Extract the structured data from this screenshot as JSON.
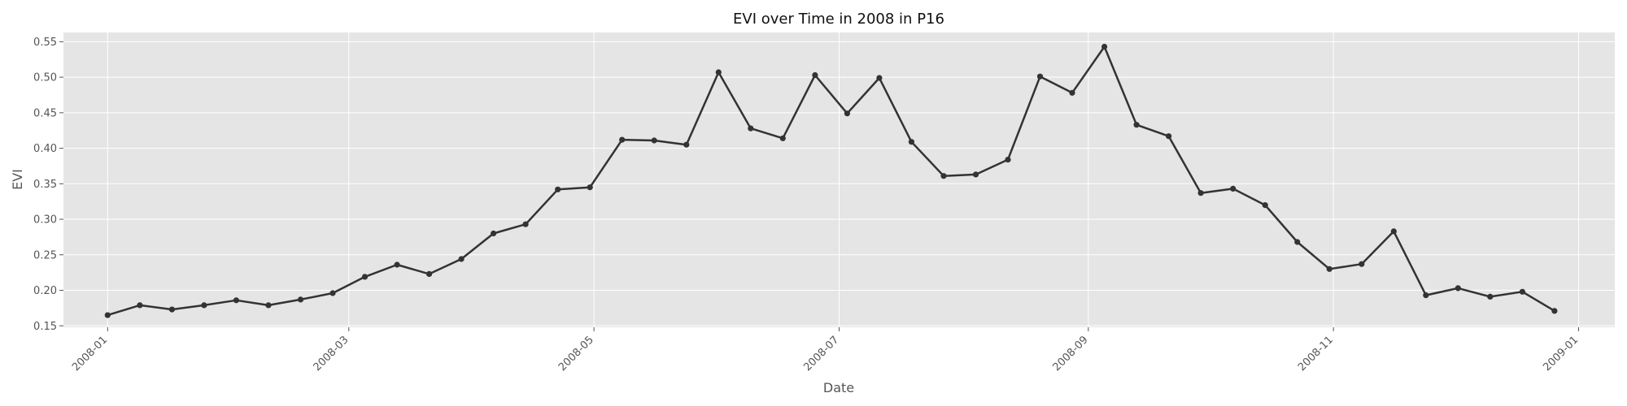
{
  "chart_data": {
    "type": "line",
    "title": "EVI over Time in 2008 in P16",
    "xlabel": "Date",
    "ylabel": "EVI",
    "xlim": [
      "2007-12-21",
      "2009-01-10"
    ],
    "ylim": [
      0.148,
      0.563
    ],
    "grid": true,
    "x_ticks": [
      "2008-01",
      "2008-03",
      "2008-05",
      "2008-07",
      "2008-09",
      "2008-11",
      "2009-01"
    ],
    "y_ticks": [
      "0.15",
      "0.20",
      "0.25",
      "0.30",
      "0.35",
      "0.40",
      "0.45",
      "0.50",
      "0.55"
    ],
    "colors": {
      "plot_background": "#e5e5e5",
      "series": "#333333"
    },
    "x": [
      "2008-01-01",
      "2008-01-09",
      "2008-01-17",
      "2008-01-25",
      "2008-02-02",
      "2008-02-10",
      "2008-02-18",
      "2008-02-26",
      "2008-03-05",
      "2008-03-13",
      "2008-03-21",
      "2008-03-29",
      "2008-04-06",
      "2008-04-14",
      "2008-04-22",
      "2008-04-30",
      "2008-05-08",
      "2008-05-16",
      "2008-05-24",
      "2008-06-01",
      "2008-06-09",
      "2008-06-17",
      "2008-06-25",
      "2008-07-03",
      "2008-07-11",
      "2008-07-19",
      "2008-07-27",
      "2008-08-04",
      "2008-08-12",
      "2008-08-20",
      "2008-08-28",
      "2008-09-05",
      "2008-09-13",
      "2008-09-21",
      "2008-09-29",
      "2008-10-07",
      "2008-10-15",
      "2008-10-23",
      "2008-10-31",
      "2008-11-08",
      "2008-11-16",
      "2008-11-24",
      "2008-12-02",
      "2008-12-10",
      "2008-12-18",
      "2008-12-26"
    ],
    "series": [
      {
        "values": [
          0.165,
          0.179,
          0.173,
          0.179,
          0.186,
          0.179,
          0.187,
          0.196,
          0.219,
          0.236,
          0.223,
          0.244,
          0.28,
          0.293,
          0.342,
          0.345,
          0.412,
          0.411,
          0.405,
          0.507,
          0.428,
          0.414,
          0.503,
          0.449,
          0.499,
          0.409,
          0.361,
          0.363,
          0.384,
          0.501,
          0.478,
          0.543,
          0.433,
          0.417,
          0.337,
          0.343,
          0.32,
          0.268,
          0.23,
          0.237,
          0.283,
          0.193,
          0.203,
          0.191,
          0.198,
          0.171
        ]
      }
    ]
  }
}
